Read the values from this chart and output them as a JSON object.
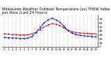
{
  "title": "Milwaukee Weather Outdoor Temperature (vs) THSW Index per Hour (Last 24 Hours)",
  "title_fontsize": 3.8,
  "hours": [
    0,
    1,
    2,
    3,
    4,
    5,
    6,
    7,
    8,
    9,
    10,
    11,
    12,
    13,
    14,
    15,
    16,
    17,
    18,
    19,
    20,
    21,
    22,
    23
  ],
  "temp": [
    33,
    32,
    31,
    31,
    30,
    30,
    31,
    33,
    37,
    43,
    50,
    55,
    58,
    57,
    54,
    48,
    42,
    38,
    36,
    35,
    34,
    34,
    33,
    33
  ],
  "thsw": [
    24,
    23,
    22,
    22,
    21,
    21,
    22,
    26,
    36,
    48,
    60,
    68,
    72,
    68,
    62,
    52,
    41,
    35,
    31,
    29,
    28,
    27,
    26,
    25
  ],
  "temp_color": "#cc0000",
  "thsw_color": "#0000cc",
  "bg_color": "#ffffff",
  "grid_color": "#888888",
  "ylim": [
    0,
    80
  ],
  "yticks": [
    0,
    10,
    20,
    30,
    40,
    50,
    60,
    70
  ],
  "ylabel_fontsize": 3.2,
  "xlabel_fontsize": 2.8,
  "line_width": 0.7,
  "marker_size": 0.8,
  "fig_width": 1.6,
  "fig_height": 0.87,
  "dpi": 100
}
